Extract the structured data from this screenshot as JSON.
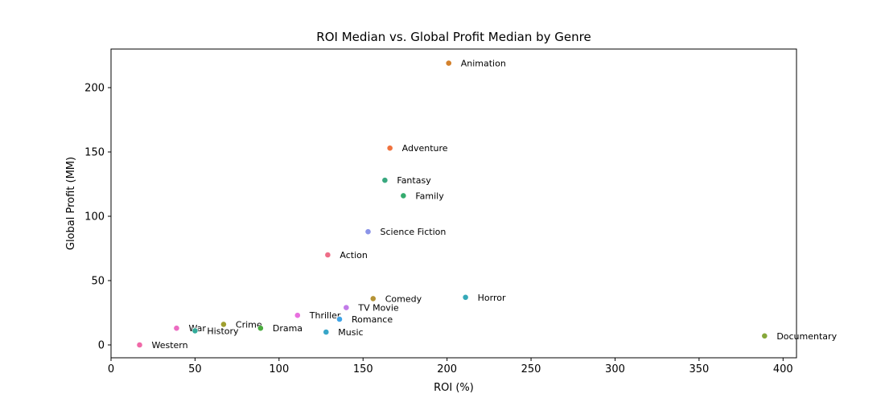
{
  "chart_data": {
    "type": "scatter",
    "title": "ROI Median vs. Global Profit Median by Genre",
    "xlabel": "ROI (%)",
    "ylabel": "Global Profit (MM)",
    "xlim": [
      0,
      408
    ],
    "ylim": [
      -10,
      230
    ],
    "xticks": [
      0,
      50,
      100,
      150,
      200,
      250,
      300,
      350,
      400
    ],
    "yticks": [
      0,
      50,
      100,
      150,
      200
    ],
    "grid": false,
    "points": [
      {
        "label": "Animation",
        "x": 201,
        "y": 219,
        "color": "#d3812c"
      },
      {
        "label": "Adventure",
        "x": 166,
        "y": 153,
        "color": "#f0723e"
      },
      {
        "label": "Fantasy",
        "x": 163,
        "y": 128,
        "color": "#39a87f"
      },
      {
        "label": "Family",
        "x": 174,
        "y": 116,
        "color": "#34ab6e"
      },
      {
        "label": "Science Fiction",
        "x": 153,
        "y": 88,
        "color": "#8b94e8"
      },
      {
        "label": "Action",
        "x": 129,
        "y": 70,
        "color": "#ee6e88"
      },
      {
        "label": "Comedy",
        "x": 156,
        "y": 36,
        "color": "#b59335"
      },
      {
        "label": "Horror",
        "x": 211,
        "y": 37,
        "color": "#35a9b8"
      },
      {
        "label": "TV Movie",
        "x": 140,
        "y": 29,
        "color": "#c17be8"
      },
      {
        "label": "Thriller",
        "x": 111,
        "y": 23,
        "color": "#e870df"
      },
      {
        "label": "Romance",
        "x": 136,
        "y": 20,
        "color": "#3ea3e6"
      },
      {
        "label": "Crime",
        "x": 67,
        "y": 16,
        "color": "#9f9f2f"
      },
      {
        "label": "War",
        "x": 39,
        "y": 13,
        "color": "#ec6cc2"
      },
      {
        "label": "Drama",
        "x": 89,
        "y": 13,
        "color": "#4aab3e"
      },
      {
        "label": "History",
        "x": 50,
        "y": 11,
        "color": "#33ab9a"
      },
      {
        "label": "Music",
        "x": 128,
        "y": 10,
        "color": "#38a6c8"
      },
      {
        "label": "Western",
        "x": 17,
        "y": 0,
        "color": "#f069a8"
      },
      {
        "label": "Documentary",
        "x": 389,
        "y": 7,
        "color": "#86a83a"
      }
    ]
  }
}
